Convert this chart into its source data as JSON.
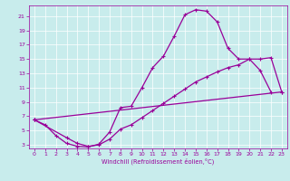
{
  "bg_color": "#c8ecec",
  "line_color": "#990099",
  "xlim": [
    -0.5,
    23.5
  ],
  "ylim": [
    2.5,
    22.5
  ],
  "xticks": [
    0,
    1,
    2,
    3,
    4,
    5,
    6,
    7,
    8,
    9,
    10,
    11,
    12,
    13,
    14,
    15,
    16,
    17,
    18,
    19,
    20,
    21,
    22,
    23
  ],
  "yticks": [
    3,
    5,
    7,
    9,
    11,
    13,
    15,
    17,
    19,
    21
  ],
  "xlabel": "Windchill (Refroidissement éolien,°C)",
  "curve1_x": [
    0,
    1,
    2,
    3,
    4,
    5,
    6,
    7,
    8,
    9,
    10,
    11,
    12,
    13,
    14,
    15,
    16,
    17,
    18,
    19,
    20,
    21,
    22
  ],
  "curve1_y": [
    6.5,
    5.8,
    4.3,
    3.2,
    2.8,
    2.7,
    3.1,
    4.8,
    8.2,
    8.4,
    11.0,
    13.8,
    15.4,
    18.2,
    21.2,
    21.9,
    21.7,
    20.2,
    16.5,
    15.0,
    15.0,
    13.4,
    10.4
  ],
  "curve2_x": [
    0,
    3,
    4,
    5,
    6,
    7,
    8,
    9,
    10,
    11,
    12,
    13,
    14,
    15,
    16,
    17,
    18,
    19,
    20,
    21,
    22,
    23
  ],
  "curve2_y": [
    6.5,
    4.0,
    3.2,
    2.8,
    3.0,
    3.8,
    5.2,
    5.8,
    6.8,
    7.8,
    8.8,
    9.8,
    10.8,
    11.8,
    12.5,
    13.2,
    13.8,
    14.2,
    15.0,
    15.0,
    15.2,
    10.4
  ],
  "curve3_x": [
    0,
    23
  ],
  "curve3_y": [
    6.5,
    10.4
  ],
  "tick_fontsize": 4.5,
  "xlabel_fontsize": 4.8,
  "lw": 0.9,
  "marker_size": 2.5
}
